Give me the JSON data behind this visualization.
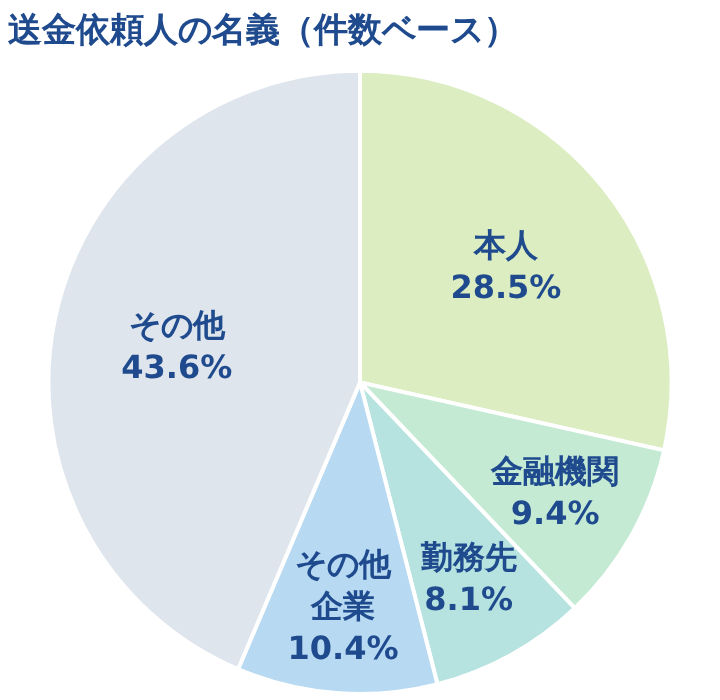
{
  "chart_data": {
    "type": "pie",
    "title": "送金依頼人の名義（件数ベース）",
    "categories": [
      "本人",
      "金融機関",
      "勤務先",
      "その他企業",
      "その他"
    ],
    "values": [
      28.5,
      9.4,
      8.1,
      10.4,
      43.6
    ],
    "value_labels": [
      "28.5%",
      "9.4%",
      "8.1%",
      "10.4%",
      "43.6%"
    ],
    "colors": [
      "#dcedc1",
      "#c4ead4",
      "#b6e3df",
      "#b7d9f2",
      "#dee5ec"
    ],
    "legend": false
  }
}
